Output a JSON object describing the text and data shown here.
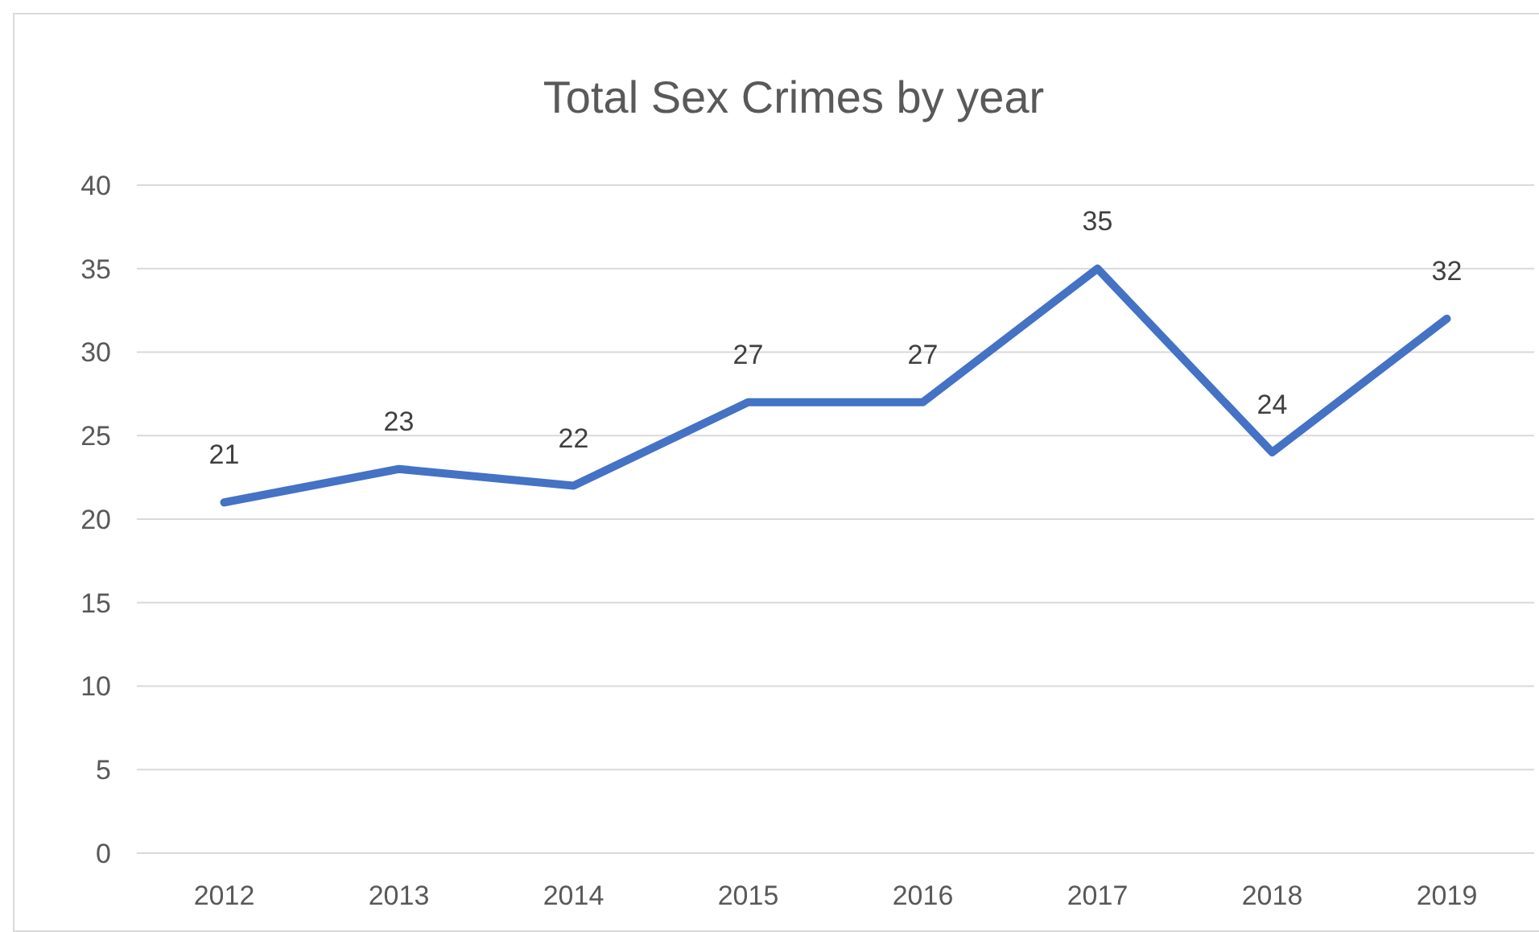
{
  "chart_data": {
    "type": "line",
    "title": "Total Sex Crimes by year",
    "categories": [
      "2012",
      "2013",
      "2014",
      "2015",
      "2016",
      "2017",
      "2018",
      "2019"
    ],
    "series": [
      {
        "color": "#4472c4",
        "values": [
          21,
          23,
          22,
          27,
          27,
          35,
          24,
          32
        ]
      }
    ],
    "ylim": [
      0,
      40
    ],
    "yticks": [
      0,
      5,
      10,
      15,
      20,
      25,
      30,
      35,
      40
    ],
    "grid": "y",
    "data_labels": true,
    "marker": "none",
    "line_style": "solid"
  }
}
